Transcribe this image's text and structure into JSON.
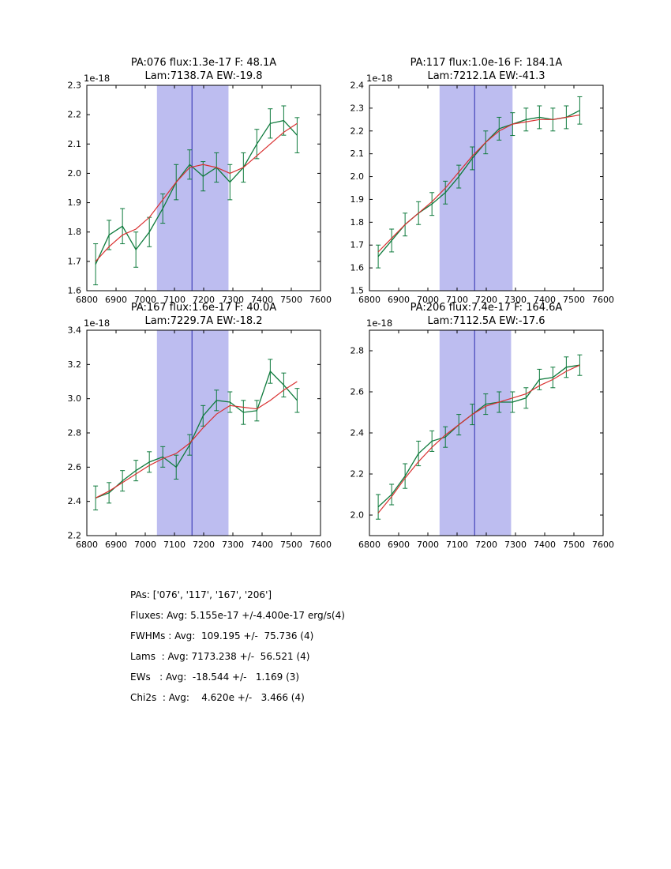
{
  "figure": {
    "background": "#ffffff"
  },
  "colors": {
    "band": "#bdbdf0",
    "vline": "#2a2ab0",
    "data": "#0e7a3c",
    "fit": "#d93030",
    "axis": "#000000"
  },
  "summary": {
    "lines": [
      "PAs: ['076', '117', '167', '206']",
      "Fluxes: Avg: 5.155e-17 +/-4.400e-17 erg/s(4)",
      "FWHMs : Avg:  109.195 +/-  75.736 (4)",
      "Lams  : Avg: 7173.238 +/-  56.521 (4)",
      "EWs   : Avg:  -18.544 +/-   1.169 (3)",
      "Chi2s  : Avg:    4.620e +/-   3.466 (4)"
    ]
  },
  "chart_data": [
    {
      "type": "line",
      "title_line1": "PA:076 flux:1.3e-17 F: 48.1A",
      "title_line2": "Lam:7138.7A EW:-19.8",
      "offset_label": "1e-18",
      "xlim": [
        6800,
        7600
      ],
      "ylim": [
        1.6,
        2.3
      ],
      "xticks": [
        6800,
        6900,
        7000,
        7100,
        7200,
        7300,
        7400,
        7500,
        7600
      ],
      "xtick_labels": [
        "6800",
        "6900",
        "7000",
        "7100",
        "7200",
        "7300",
        "7400",
        "7500",
        "7600"
      ],
      "yticks": [
        1.6,
        1.7,
        1.8,
        1.9,
        2.0,
        2.1,
        2.2,
        2.3
      ],
      "ytick_labels": [
        "1.6",
        "1.7",
        "1.8",
        "1.9",
        "2.0",
        "2.1",
        "2.2",
        "2.3"
      ],
      "band": [
        7040,
        7285
      ],
      "vline": 7160,
      "x": [
        6830,
        6876,
        6922,
        6968,
        7014,
        7060,
        7106,
        7152,
        7198,
        7244,
        7290,
        7336,
        7382,
        7428,
        7474,
        7520
      ],
      "obs": [
        1.69,
        1.79,
        1.82,
        1.74,
        1.8,
        1.88,
        1.97,
        2.03,
        1.99,
        2.02,
        1.97,
        2.02,
        2.1,
        2.17,
        2.18,
        2.13
      ],
      "err": [
        0.07,
        0.05,
        0.06,
        0.06,
        0.05,
        0.05,
        0.06,
        0.05,
        0.05,
        0.05,
        0.06,
        0.05,
        0.05,
        0.05,
        0.05,
        0.06
      ],
      "fit": [
        1.7,
        1.75,
        1.79,
        1.81,
        1.85,
        1.91,
        1.97,
        2.02,
        2.03,
        2.02,
        2.0,
        2.02,
        2.06,
        2.1,
        2.14,
        2.17
      ]
    },
    {
      "type": "line",
      "title_line1": "PA:117 flux:1.0e-16 F: 184.1A",
      "title_line2": "Lam:7212.1A EW:-41.3",
      "offset_label": "1e-18",
      "xlim": [
        6800,
        7600
      ],
      "ylim": [
        1.5,
        2.4
      ],
      "xticks": [
        6800,
        6900,
        7000,
        7100,
        7200,
        7300,
        7400,
        7500,
        7600
      ],
      "xtick_labels": [
        "6800",
        "6900",
        "7000",
        "7100",
        "7200",
        "7300",
        "7400",
        "7500",
        "7600"
      ],
      "yticks": [
        1.5,
        1.6,
        1.7,
        1.8,
        1.9,
        2.0,
        2.1,
        2.2,
        2.3,
        2.4
      ],
      "ytick_labels": [
        "1.5",
        "1.6",
        "1.7",
        "1.8",
        "1.9",
        "2.0",
        "2.1",
        "2.2",
        "2.3",
        "2.4"
      ],
      "band": [
        7040,
        7290
      ],
      "vline": 7160,
      "x": [
        6830,
        6876,
        6922,
        6968,
        7014,
        7060,
        7106,
        7152,
        7198,
        7244,
        7290,
        7336,
        7382,
        7428,
        7474,
        7520
      ],
      "obs": [
        1.65,
        1.72,
        1.79,
        1.84,
        1.88,
        1.93,
        2.0,
        2.08,
        2.15,
        2.21,
        2.23,
        2.25,
        2.26,
        2.25,
        2.26,
        2.29
      ],
      "err": [
        0.05,
        0.05,
        0.05,
        0.05,
        0.05,
        0.05,
        0.05,
        0.05,
        0.05,
        0.05,
        0.05,
        0.05,
        0.05,
        0.05,
        0.05,
        0.06
      ],
      "fit": [
        1.67,
        1.73,
        1.79,
        1.84,
        1.89,
        1.95,
        2.02,
        2.09,
        2.15,
        2.2,
        2.23,
        2.24,
        2.25,
        2.25,
        2.26,
        2.27
      ]
    },
    {
      "type": "line",
      "title_line1": "PA:167 flux:1.6e-17 F: 40.0A",
      "title_line2": "Lam:7229.7A EW:-18.2",
      "offset_label": "1e-18",
      "xlim": [
        6800,
        7600
      ],
      "ylim": [
        2.2,
        3.4
      ],
      "xticks": [
        6800,
        6900,
        7000,
        7100,
        7200,
        7300,
        7400,
        7500,
        7600
      ],
      "xtick_labels": [
        "6800",
        "6900",
        "7000",
        "7100",
        "7200",
        "7300",
        "7400",
        "7500",
        "7600"
      ],
      "yticks": [
        2.2,
        2.4,
        2.6,
        2.8,
        3.0,
        3.2,
        3.4
      ],
      "ytick_labels": [
        "2.2",
        "2.4",
        "2.6",
        "2.8",
        "3.0",
        "3.2",
        "3.4"
      ],
      "band": [
        7040,
        7285
      ],
      "vline": 7160,
      "x": [
        6830,
        6876,
        6922,
        6968,
        7014,
        7060,
        7106,
        7152,
        7198,
        7244,
        7290,
        7336,
        7382,
        7428,
        7474,
        7520
      ],
      "obs": [
        2.42,
        2.45,
        2.52,
        2.58,
        2.63,
        2.66,
        2.6,
        2.73,
        2.9,
        2.99,
        2.98,
        2.92,
        2.93,
        3.16,
        3.08,
        2.99
      ],
      "err": [
        0.07,
        0.06,
        0.06,
        0.06,
        0.06,
        0.06,
        0.07,
        0.06,
        0.06,
        0.06,
        0.06,
        0.07,
        0.06,
        0.07,
        0.07,
        0.07
      ],
      "fit": [
        2.42,
        2.46,
        2.51,
        2.56,
        2.61,
        2.65,
        2.68,
        2.74,
        2.83,
        2.91,
        2.96,
        2.95,
        2.94,
        2.99,
        3.05,
        3.1
      ]
    },
    {
      "type": "line",
      "title_line1": "PA:206 flux:7.4e-17 F: 164.6A",
      "title_line2": "Lam:7112.5A EW:-17.6",
      "offset_label": "1e-18",
      "xlim": [
        6800,
        7600
      ],
      "ylim": [
        1.9,
        2.9
      ],
      "xticks": [
        6800,
        6900,
        7000,
        7100,
        7200,
        7300,
        7400,
        7500,
        7600
      ],
      "xtick_labels": [
        "6800",
        "6900",
        "7000",
        "7100",
        "7200",
        "7300",
        "7400",
        "7500",
        "7600"
      ],
      "yticks": [
        2.0,
        2.2,
        2.4,
        2.6,
        2.8
      ],
      "ytick_labels": [
        "2.0",
        "2.2",
        "2.4",
        "2.6",
        "2.8"
      ],
      "band": [
        7040,
        7285
      ],
      "vline": 7160,
      "x": [
        6830,
        6876,
        6922,
        6968,
        7014,
        7060,
        7106,
        7152,
        7198,
        7244,
        7290,
        7336,
        7382,
        7428,
        7474,
        7520
      ],
      "obs": [
        2.04,
        2.1,
        2.19,
        2.3,
        2.36,
        2.38,
        2.44,
        2.49,
        2.54,
        2.55,
        2.55,
        2.57,
        2.66,
        2.67,
        2.72,
        2.73
      ],
      "err": [
        0.06,
        0.05,
        0.06,
        0.06,
        0.05,
        0.05,
        0.05,
        0.05,
        0.05,
        0.05,
        0.05,
        0.05,
        0.05,
        0.05,
        0.05,
        0.05
      ],
      "fit": [
        2.01,
        2.09,
        2.18,
        2.26,
        2.33,
        2.39,
        2.44,
        2.49,
        2.53,
        2.55,
        2.57,
        2.59,
        2.63,
        2.66,
        2.7,
        2.73
      ]
    }
  ]
}
